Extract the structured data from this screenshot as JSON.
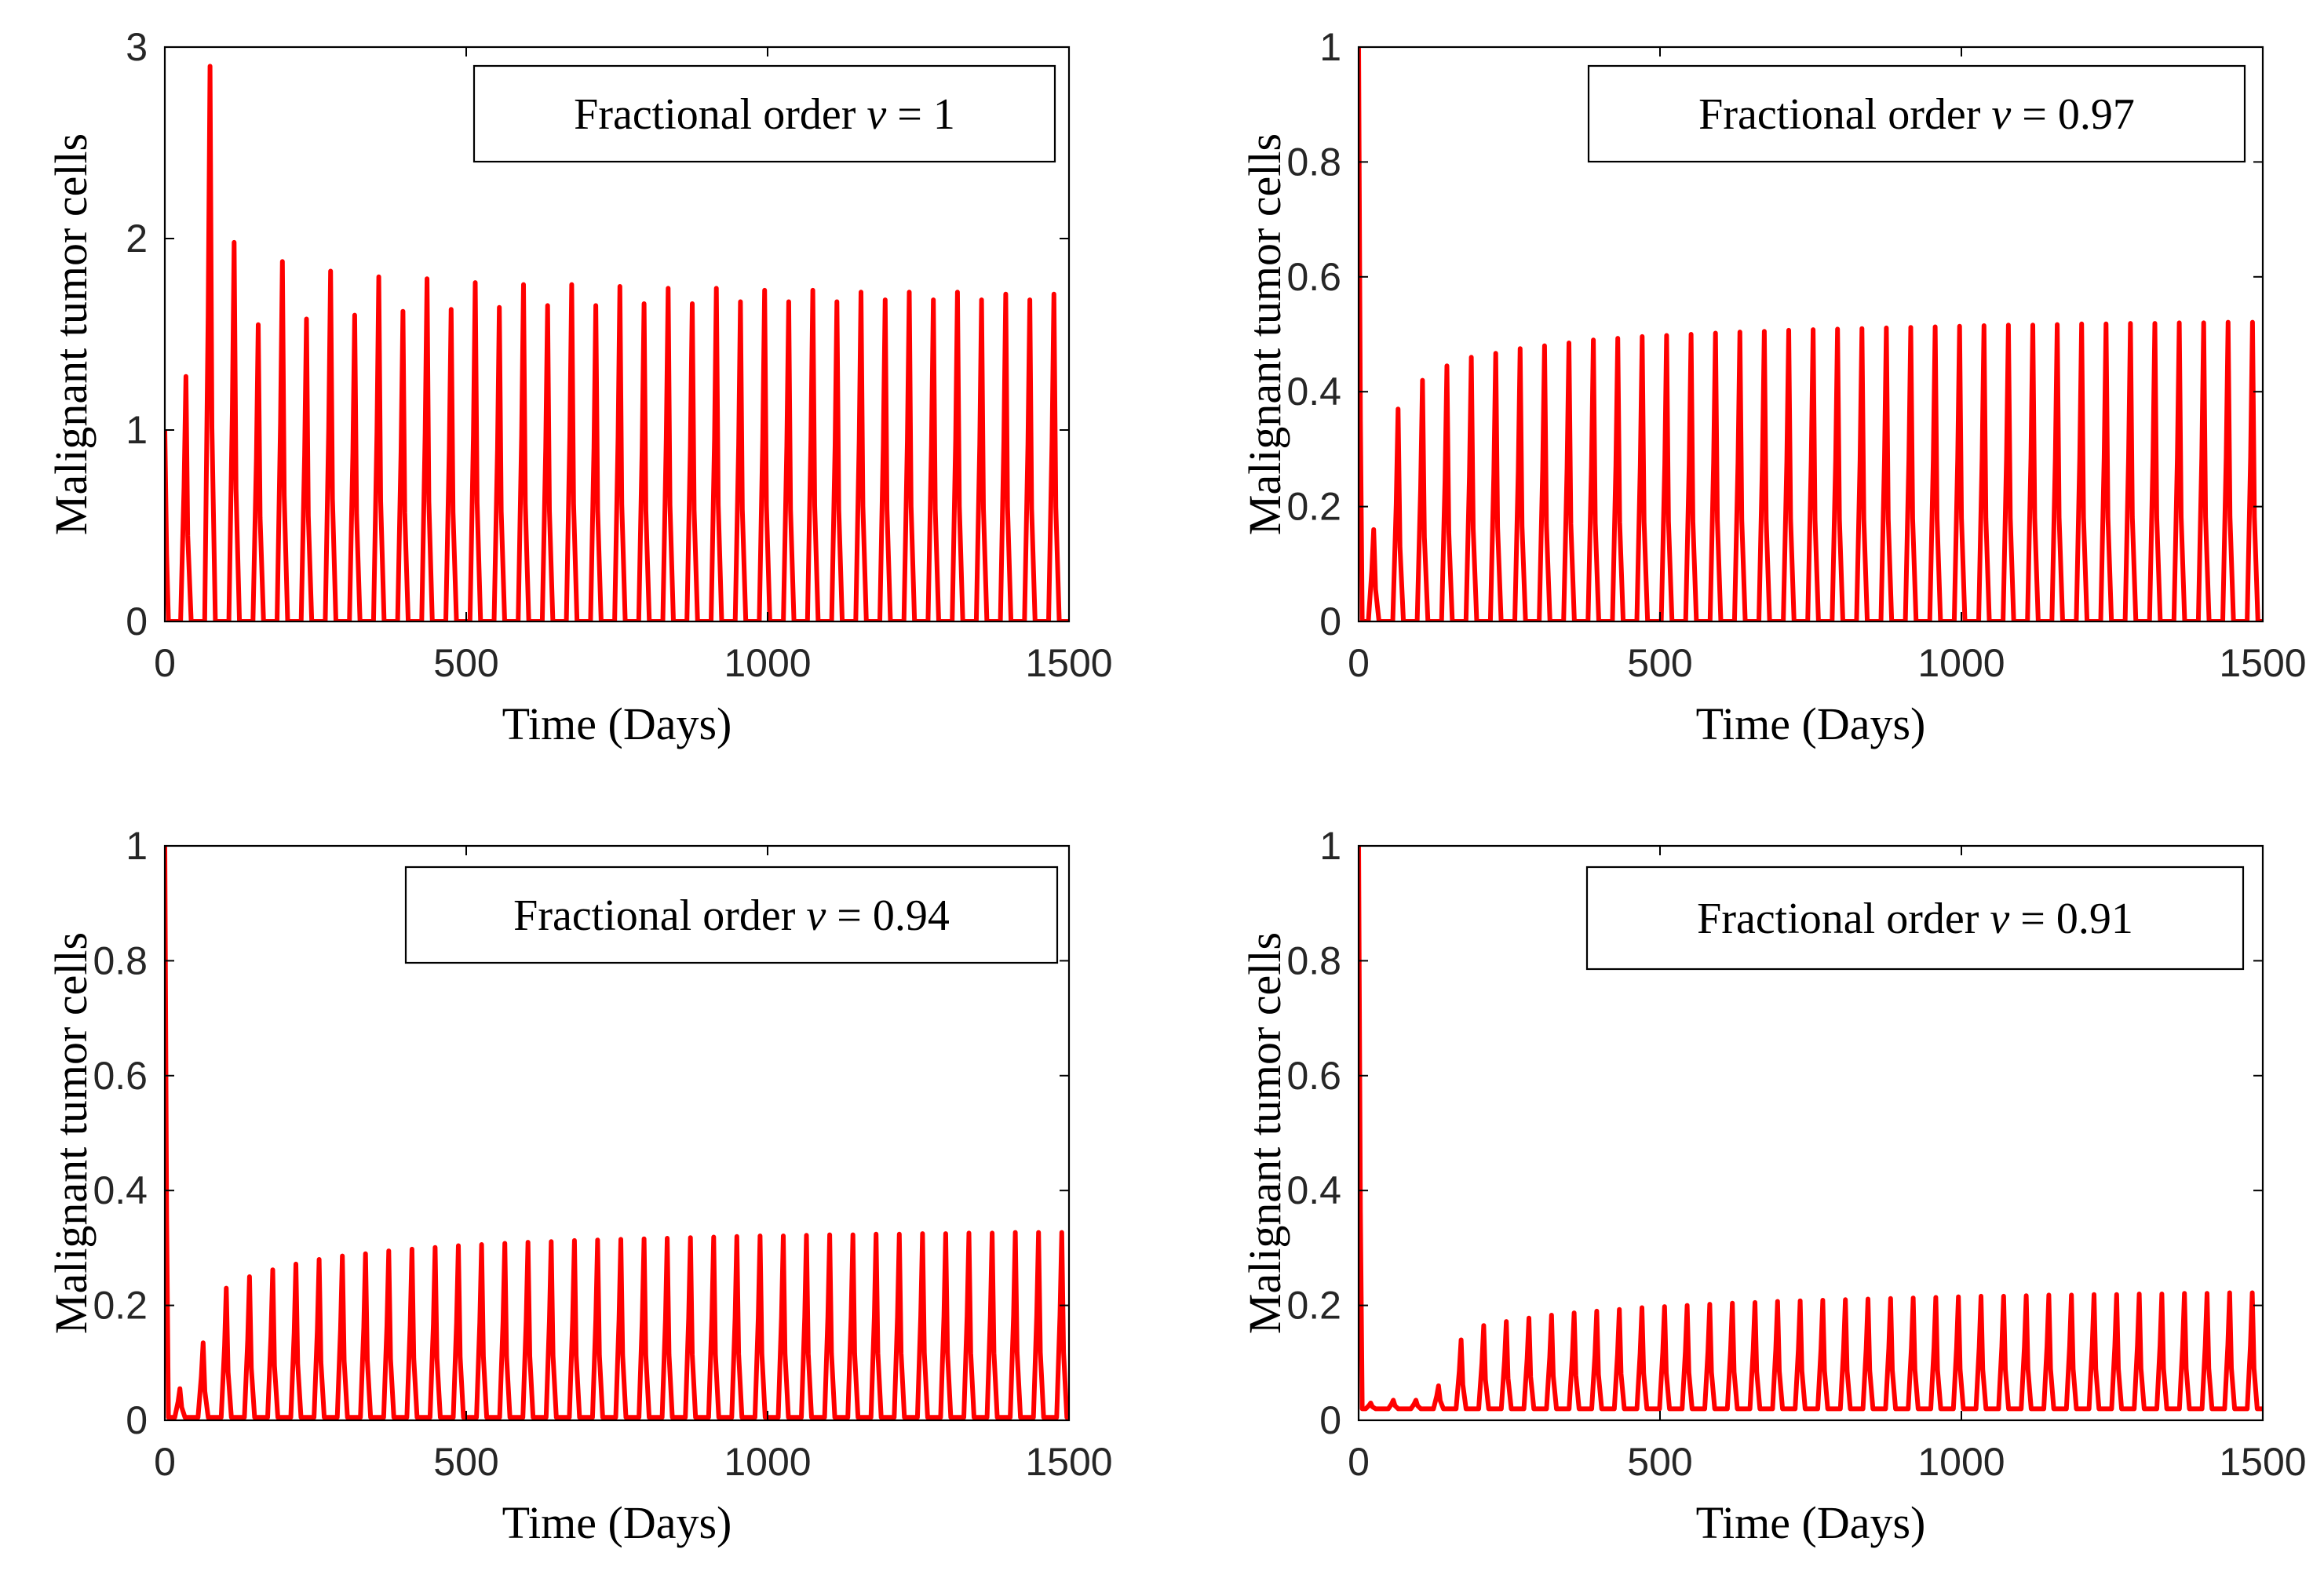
{
  "chart_data": [
    {
      "type": "line",
      "legend": {
        "prefix": "Fractional order ",
        "variable": "v",
        "equals": " = ",
        "value": "1"
      },
      "xlabel": "Time (Days)",
      "ylabel": "Malignant tumor cells",
      "xlim": [
        0,
        1500
      ],
      "ylim": [
        0,
        3
      ],
      "xticks": [
        0,
        500,
        1000,
        1500
      ],
      "xtick_labels": [
        "0",
        "500",
        "1000",
        "1500"
      ],
      "yticks": [
        0,
        1,
        2,
        3
      ],
      "ytick_labels": [
        "0",
        "1",
        "2",
        "3"
      ],
      "series": [
        {
          "name": "v = 1",
          "color": "#ff0000",
          "initial": 1,
          "period": 40,
          "first_peak": 35,
          "peaks": [
            1.28,
            2.9,
            1.98,
            1.55,
            1.88,
            1.58,
            1.83,
            1.6,
            1.8,
            1.62,
            1.79,
            1.63,
            1.77,
            1.64,
            1.76,
            1.65,
            1.76,
            1.65,
            1.75,
            1.66,
            1.74,
            1.66,
            1.74,
            1.67,
            1.73,
            1.67,
            1.73,
            1.67,
            1.72,
            1.68,
            1.72,
            1.68,
            1.72,
            1.68,
            1.71,
            1.68,
            1.71,
            1.69
          ],
          "baseline": 0
        }
      ]
    },
    {
      "type": "line",
      "legend": {
        "prefix": "Fractional order ",
        "variable": "v",
        "equals": " = ",
        "value": "0.97"
      },
      "xlabel": "Time (Days)",
      "ylabel": "Malignant tumor cells",
      "xlim": [
        0,
        1500
      ],
      "ylim": [
        0,
        1
      ],
      "xticks": [
        0,
        500,
        1000,
        1500
      ],
      "xtick_labels": [
        "0",
        "500",
        "1000",
        "1500"
      ],
      "yticks": [
        0,
        0.2,
        0.4,
        0.6,
        0.8,
        1
      ],
      "ytick_labels": [
        "0",
        "0.2",
        "0.4",
        "0.6",
        "0.8",
        "1"
      ],
      "series": [
        {
          "name": "v = 0.97",
          "color": "#ff0000",
          "initial": 1,
          "period": 40.5,
          "first_peak": 25,
          "peaks": [
            0.16,
            0.37,
            0.42,
            0.445,
            0.46,
            0.467,
            0.475,
            0.48,
            0.485,
            0.49,
            0.493,
            0.496,
            0.498,
            0.5,
            0.502,
            0.504,
            0.505,
            0.507,
            0.508,
            0.509,
            0.51,
            0.511,
            0.512,
            0.513,
            0.514,
            0.515,
            0.516,
            0.516,
            0.517,
            0.518,
            0.518,
            0.519,
            0.519,
            0.52,
            0.52,
            0.521,
            0.521,
            0.522
          ],
          "baseline": 0
        }
      ]
    },
    {
      "type": "line",
      "legend": {
        "prefix": "Fractional order ",
        "variable": "v",
        "equals": " = ",
        "value": "0.94"
      },
      "xlabel": "Time (Days)",
      "ylabel": "Malignant tumor cells",
      "xlim": [
        0,
        1500
      ],
      "ylim": [
        0,
        1
      ],
      "xticks": [
        0,
        500,
        1000,
        1500
      ],
      "xtick_labels": [
        "0",
        "500",
        "1000",
        "1500"
      ],
      "yticks": [
        0,
        0.2,
        0.4,
        0.6,
        0.8,
        1
      ],
      "ytick_labels": [
        "0",
        "0.2",
        "0.4",
        "0.6",
        "0.8",
        "1"
      ],
      "series": [
        {
          "name": "v = 0.94",
          "color": "#ff0000",
          "initial": 1,
          "period": 38.5,
          "first_peak": 25,
          "peaks": [
            0.055,
            0.135,
            0.23,
            0.25,
            0.262,
            0.272,
            0.28,
            0.286,
            0.29,
            0.295,
            0.298,
            0.301,
            0.304,
            0.306,
            0.308,
            0.31,
            0.311,
            0.313,
            0.314,
            0.315,
            0.316,
            0.317,
            0.318,
            0.319,
            0.32,
            0.321,
            0.321,
            0.322,
            0.323,
            0.323,
            0.324,
            0.324,
            0.325,
            0.325,
            0.326,
            0.326,
            0.327,
            0.327,
            0.327,
            0.328
          ],
          "baseline": 0.005
        }
      ]
    },
    {
      "type": "line",
      "legend": {
        "prefix": "Fractional order ",
        "variable": "v",
        "equals": " = ",
        "value": "0.91"
      },
      "xlabel": "Time (Days)",
      "ylabel": "Malignant tumor cells",
      "xlim": [
        0,
        1500
      ],
      "ylim": [
        0,
        1
      ],
      "xticks": [
        0,
        500,
        1000,
        1500
      ],
      "xtick_labels": [
        "0",
        "500",
        "1000",
        "1500"
      ],
      "yticks": [
        0,
        0.2,
        0.4,
        0.6,
        0.8,
        1
      ],
      "ytick_labels": [
        "0",
        "0.2",
        "0.4",
        "0.6",
        "0.8",
        "1"
      ],
      "series": [
        {
          "name": "v = 0.91",
          "color": "#ff0000",
          "initial": 1,
          "period": 37.5,
          "first_peak": 20,
          "peaks": [
            0.03,
            0.035,
            0.035,
            0.06,
            0.14,
            0.165,
            0.172,
            0.178,
            0.183,
            0.187,
            0.19,
            0.193,
            0.196,
            0.198,
            0.2,
            0.202,
            0.204,
            0.205,
            0.207,
            0.208,
            0.209,
            0.21,
            0.211,
            0.212,
            0.213,
            0.214,
            0.215,
            0.216,
            0.216,
            0.217,
            0.218,
            0.218,
            0.219,
            0.219,
            0.22,
            0.22,
            0.221,
            0.221,
            0.222,
            0.222
          ],
          "baseline": 0.02
        }
      ]
    }
  ]
}
